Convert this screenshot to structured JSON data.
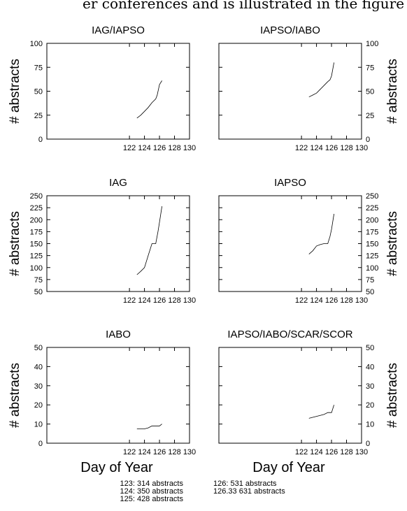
{
  "header_fragment": "er conferences and is illustrated in the figure below:",
  "x_axis_label": "Day of Year",
  "y_axis_label": "# abstracts",
  "footnotes": {
    "left": [
      "123: 314 abstracts",
      "124: 350 abstracts",
      "125: 428 abstracts"
    ],
    "right": [
      "126: 531 abstracts",
      "126.33 631 abstracts"
    ]
  },
  "chart_data": [
    {
      "type": "line",
      "title": "IAG/IAPSO",
      "xlim": [
        111,
        130
      ],
      "ylim": [
        0,
        100
      ],
      "xticks": [
        122,
        124,
        126,
        128,
        130
      ],
      "yticks": [
        0,
        25,
        50,
        75,
        100
      ],
      "grid": false,
      "y_axis_side": "left",
      "x": [
        123,
        123.5,
        124,
        124.5,
        125,
        125.5,
        125.7,
        126,
        126.33
      ],
      "values": [
        22,
        25,
        29,
        33,
        38,
        42,
        46,
        57,
        61
      ]
    },
    {
      "type": "line",
      "title": "IAPSO/IABO",
      "xlim": [
        111,
        130
      ],
      "ylim": [
        0,
        100
      ],
      "xticks": [
        122,
        124,
        126,
        128,
        130
      ],
      "yticks": [
        0,
        25,
        50,
        75,
        100
      ],
      "grid": false,
      "y_axis_side": "right",
      "x": [
        123,
        123.5,
        124,
        124.5,
        125,
        125.5,
        125.8,
        126,
        126.33
      ],
      "values": [
        44,
        46,
        48,
        52,
        56,
        60,
        62,
        66,
        80
      ]
    },
    {
      "type": "line",
      "title": "IAG",
      "xlim": [
        111,
        130
      ],
      "ylim": [
        50,
        250
      ],
      "xticks": [
        122,
        124,
        126,
        128,
        130
      ],
      "yticks": [
        50,
        75,
        100,
        125,
        150,
        175,
        200,
        225,
        250
      ],
      "grid": false,
      "y_axis_side": "left",
      "x": [
        123,
        123.5,
        124,
        124.5,
        125,
        125.5,
        125.8,
        126,
        126.33
      ],
      "values": [
        85,
        92,
        100,
        125,
        150,
        150,
        175,
        195,
        228
      ]
    },
    {
      "type": "line",
      "title": "IAPSO",
      "xlim": [
        111,
        130
      ],
      "ylim": [
        50,
        250
      ],
      "xticks": [
        122,
        124,
        126,
        128,
        130
      ],
      "yticks": [
        50,
        75,
        100,
        125,
        150,
        175,
        200,
        225,
        250
      ],
      "grid": false,
      "y_axis_side": "right",
      "x": [
        123,
        123.5,
        124,
        124.5,
        125,
        125.5,
        125.8,
        126,
        126.33
      ],
      "values": [
        128,
        135,
        145,
        148,
        150,
        150,
        165,
        180,
        212
      ]
    },
    {
      "type": "line",
      "title": "IABO",
      "xlim": [
        111,
        130
      ],
      "ylim": [
        0,
        50
      ],
      "xticks": [
        122,
        124,
        126,
        128,
        130
      ],
      "yticks": [
        0,
        10,
        20,
        30,
        40,
        50
      ],
      "grid": false,
      "y_axis_side": "left",
      "x": [
        123,
        124,
        124.5,
        125,
        125.5,
        126,
        126.33
      ],
      "values": [
        7.5,
        7.5,
        8,
        9,
        9,
        9,
        10
      ]
    },
    {
      "type": "line",
      "title": "IAPSO/IABO/SCAR/SCOR",
      "xlim": [
        111,
        130
      ],
      "ylim": [
        0,
        50
      ],
      "xticks": [
        122,
        124,
        126,
        128,
        130
      ],
      "yticks": [
        0,
        10,
        20,
        30,
        40,
        50
      ],
      "grid": false,
      "y_axis_side": "right",
      "x": [
        123,
        124,
        125,
        125.5,
        126,
        126.33
      ],
      "values": [
        13,
        14,
        15,
        16,
        16,
        20
      ]
    }
  ]
}
